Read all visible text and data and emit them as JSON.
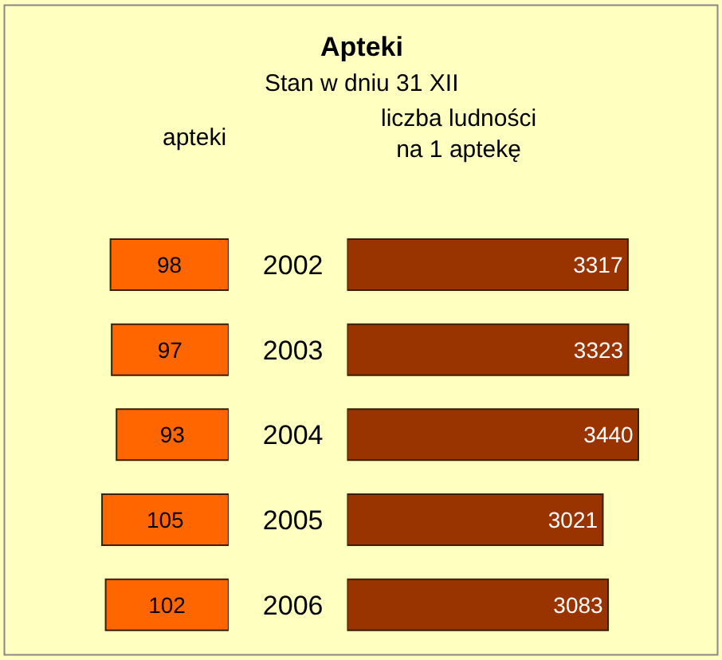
{
  "chart_data": [
    {
      "type": "other",
      "title": "Apteki",
      "subtitle": "Stan w dniu 31 XII"
    },
    {
      "type": "bar",
      "orientation": "horizontal",
      "title": "apteki",
      "categories": [
        "2002",
        "2003",
        "2004",
        "2005",
        "2006"
      ],
      "values": [
        98,
        97,
        93,
        105,
        102
      ],
      "color": "#ff6600",
      "data_labels": true,
      "tick_labels": false
    },
    {
      "type": "bar",
      "orientation": "horizontal",
      "title": "liczba ludności\nna 1 aptekę",
      "categories": [
        "2002",
        "2003",
        "2004",
        "2005",
        "2006"
      ],
      "values": [
        3317,
        3323,
        3440,
        3021,
        3083
      ],
      "color": "#993300",
      "data_labels": true,
      "tick_labels": "y"
    }
  ]
}
